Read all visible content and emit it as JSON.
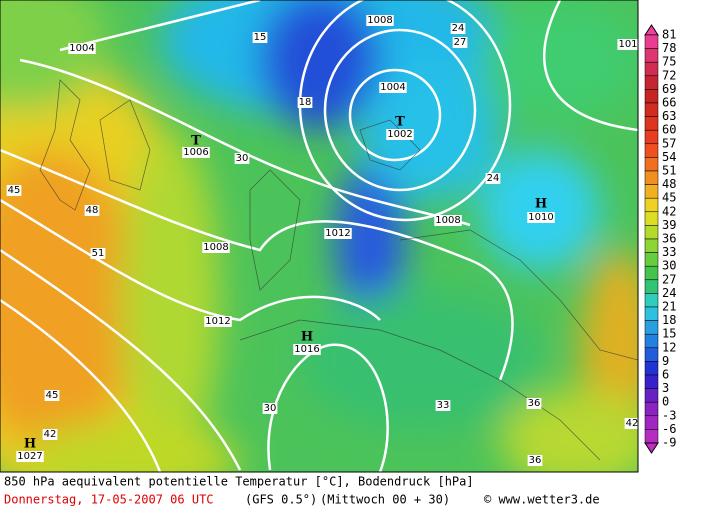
{
  "map": {
    "labels": [
      "1004",
      "1008",
      "1004",
      "T",
      "1002",
      "T",
      "1006",
      "1008",
      "1012",
      "1008",
      "1012",
      "H",
      "1016",
      "H",
      "1010",
      "H",
      "1027",
      "101",
      "15",
      "18",
      "24",
      "27",
      "30",
      "24",
      "45",
      "48",
      "51",
      "36",
      "33",
      "30",
      "42",
      "45",
      "42",
      "36"
    ],
    "legend": [
      81,
      78,
      75,
      72,
      69,
      66,
      63,
      60,
      57,
      54,
      51,
      48,
      45,
      42,
      39,
      36,
      33,
      30,
      27,
      24,
      21,
      18,
      15,
      12,
      9,
      6,
      3,
      0,
      -3,
      -6,
      -9
    ]
  },
  "footer": {
    "title": "850 hPa aequivalent potentielle Temperatur [°C], Bodendruck [hPa]",
    "date": "Donnerstag, 17-05-2007  06 UTC",
    "model": "(GFS 0.5°)",
    "run": "(Mittwoch 00 + 30)",
    "credit": "© www.wetter3.de"
  }
}
